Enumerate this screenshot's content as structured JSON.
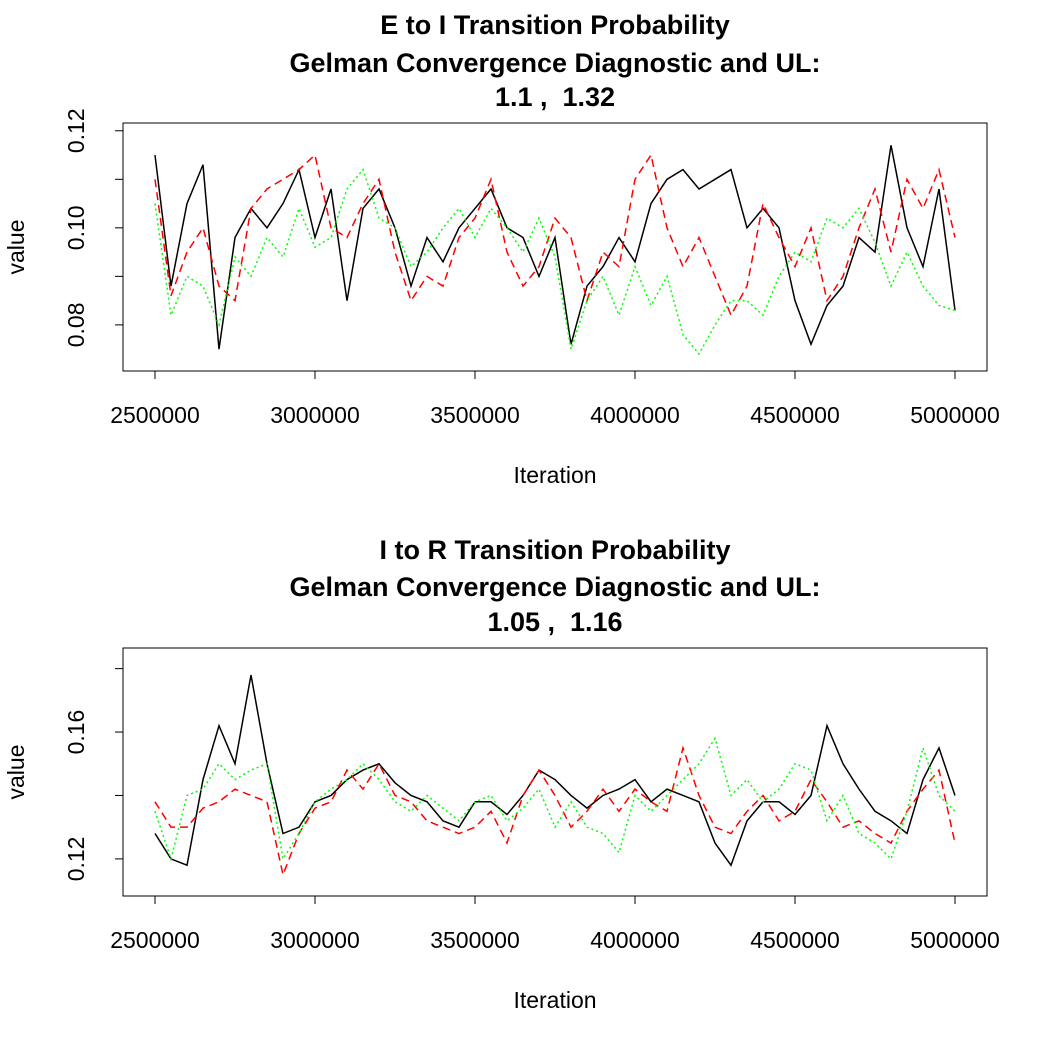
{
  "chart_data": [
    {
      "type": "line",
      "title": [
        "E to I Transition Probability",
        "Gelman Convergence Diagnostic and UL:",
        "1.1 ,  1.32"
      ],
      "xlabel": "Iteration",
      "ylabel": "value",
      "x": [
        2500000,
        2550000,
        2600000,
        2650000,
        2700000,
        2750000,
        2800000,
        2850000,
        2900000,
        2950000,
        3000000,
        3050000,
        3100000,
        3150000,
        3200000,
        3250000,
        3300000,
        3350000,
        3400000,
        3450000,
        3500000,
        3550000,
        3600000,
        3650000,
        3700000,
        3750000,
        3800000,
        3850000,
        3900000,
        3950000,
        4000000,
        4050000,
        4100000,
        4150000,
        4200000,
        4250000,
        4300000,
        4350000,
        4400000,
        4450000,
        4500000,
        4550000,
        4600000,
        4650000,
        4700000,
        4750000,
        4800000,
        4850000,
        4900000,
        4950000,
        5000000
      ],
      "series": [
        {
          "color": "#000000",
          "linestyle": "solid",
          "values": [
            0.115,
            0.088,
            0.105,
            0.113,
            0.075,
            0.098,
            0.104,
            0.1,
            0.105,
            0.112,
            0.098,
            0.108,
            0.085,
            0.104,
            0.108,
            0.1,
            0.088,
            0.098,
            0.093,
            0.1,
            0.104,
            0.108,
            0.1,
            0.098,
            0.09,
            0.098,
            0.076,
            0.088,
            0.092,
            0.098,
            0.093,
            0.105,
            0.11,
            0.112,
            0.108,
            0.11,
            0.112,
            0.1,
            0.104,
            0.1,
            0.085,
            0.076,
            0.084,
            0.088,
            0.098,
            0.095,
            0.117,
            0.1,
            0.092,
            0.108,
            0.083
          ]
        },
        {
          "color": "#ff0000",
          "linestyle": "dashed",
          "values": [
            0.11,
            0.086,
            0.095,
            0.1,
            0.088,
            0.085,
            0.104,
            0.108,
            0.11,
            0.112,
            0.115,
            0.1,
            0.098,
            0.105,
            0.11,
            0.095,
            0.085,
            0.09,
            0.088,
            0.098,
            0.102,
            0.11,
            0.095,
            0.088,
            0.092,
            0.102,
            0.098,
            0.085,
            0.095,
            0.092,
            0.11,
            0.115,
            0.1,
            0.092,
            0.098,
            0.09,
            0.082,
            0.088,
            0.105,
            0.098,
            0.092,
            0.1,
            0.085,
            0.09,
            0.1,
            0.108,
            0.095,
            0.11,
            0.104,
            0.112,
            0.098
          ]
        },
        {
          "color": "#00ff00",
          "linestyle": "dotted",
          "values": [
            0.105,
            0.082,
            0.09,
            0.088,
            0.08,
            0.094,
            0.09,
            0.098,
            0.094,
            0.104,
            0.096,
            0.098,
            0.108,
            0.112,
            0.102,
            0.1,
            0.092,
            0.095,
            0.1,
            0.104,
            0.098,
            0.104,
            0.1,
            0.095,
            0.102,
            0.094,
            0.075,
            0.085,
            0.09,
            0.082,
            0.092,
            0.084,
            0.09,
            0.078,
            0.074,
            0.08,
            0.085,
            0.085,
            0.082,
            0.09,
            0.095,
            0.093,
            0.102,
            0.1,
            0.104,
            0.097,
            0.088,
            0.095,
            0.088,
            0.084,
            0.083
          ]
        }
      ],
      "xlim": [
        2400000,
        5100000
      ],
      "xticks": [
        2500000,
        3000000,
        3500000,
        4000000,
        4500000,
        5000000
      ],
      "ylim": [
        0.0705,
        0.1216
      ],
      "yticks": [
        0.08,
        {
          "value": 0.1,
          "label": "0.10"
        },
        0.12
      ],
      "yticks_minor": [
        0.09,
        0.11
      ]
    },
    {
      "type": "line",
      "title": [
        "I to R Transition Probability",
        "Gelman Convergence Diagnostic and UL:",
        "1.05 ,  1.16"
      ],
      "xlabel": "Iteration",
      "ylabel": "value",
      "x": [
        2500000,
        2550000,
        2600000,
        2650000,
        2700000,
        2750000,
        2800000,
        2850000,
        2900000,
        2950000,
        3000000,
        3050000,
        3100000,
        3150000,
        3200000,
        3250000,
        3300000,
        3350000,
        3400000,
        3450000,
        3500000,
        3550000,
        3600000,
        3650000,
        3700000,
        3750000,
        3800000,
        3850000,
        3900000,
        3950000,
        4000000,
        4050000,
        4100000,
        4150000,
        4200000,
        4250000,
        4300000,
        4350000,
        4400000,
        4450000,
        4500000,
        4550000,
        4600000,
        4650000,
        4700000,
        4750000,
        4800000,
        4850000,
        4900000,
        4950000,
        5000000
      ],
      "series": [
        {
          "color": "#000000",
          "linestyle": "solid",
          "values": [
            0.128,
            0.12,
            0.118,
            0.145,
            0.162,
            0.15,
            0.178,
            0.15,
            0.128,
            0.13,
            0.138,
            0.14,
            0.145,
            0.148,
            0.15,
            0.144,
            0.14,
            0.138,
            0.132,
            0.13,
            0.138,
            0.138,
            0.134,
            0.14,
            0.148,
            0.145,
            0.14,
            0.136,
            0.14,
            0.142,
            0.145,
            0.138,
            0.142,
            0.14,
            0.138,
            0.125,
            0.118,
            0.132,
            0.138,
            0.138,
            0.134,
            0.14,
            0.162,
            0.15,
            0.142,
            0.135,
            0.132,
            0.128,
            0.145,
            0.155,
            0.14
          ]
        },
        {
          "color": "#ff0000",
          "linestyle": "dashed",
          "values": [
            0.138,
            0.13,
            0.13,
            0.136,
            0.138,
            0.142,
            0.14,
            0.138,
            0.115,
            0.128,
            0.136,
            0.138,
            0.148,
            0.142,
            0.15,
            0.14,
            0.138,
            0.132,
            0.13,
            0.128,
            0.13,
            0.135,
            0.125,
            0.14,
            0.148,
            0.14,
            0.13,
            0.135,
            0.142,
            0.135,
            0.142,
            0.138,
            0.135,
            0.155,
            0.14,
            0.13,
            0.128,
            0.135,
            0.14,
            0.132,
            0.135,
            0.145,
            0.138,
            0.13,
            0.132,
            0.128,
            0.125,
            0.135,
            0.142,
            0.148,
            0.125
          ]
        },
        {
          "color": "#00ff00",
          "linestyle": "dotted",
          "values": [
            0.135,
            0.12,
            0.14,
            0.142,
            0.15,
            0.145,
            0.148,
            0.15,
            0.12,
            0.128,
            0.138,
            0.142,
            0.145,
            0.15,
            0.145,
            0.138,
            0.135,
            0.14,
            0.136,
            0.132,
            0.138,
            0.14,
            0.132,
            0.136,
            0.142,
            0.13,
            0.138,
            0.13,
            0.128,
            0.122,
            0.14,
            0.135,
            0.14,
            0.145,
            0.15,
            0.158,
            0.14,
            0.145,
            0.138,
            0.142,
            0.15,
            0.148,
            0.132,
            0.14,
            0.128,
            0.125,
            0.12,
            0.135,
            0.155,
            0.14,
            0.135
          ]
        }
      ],
      "xlim": [
        2400000,
        5100000
      ],
      "xticks": [
        2500000,
        3000000,
        3500000,
        4000000,
        4500000,
        5000000
      ],
      "ylim": [
        0.1083,
        0.1865
      ],
      "yticks": [
        0.12,
        0.16
      ],
      "yticks_minor": [
        0.14,
        0.18
      ]
    }
  ]
}
